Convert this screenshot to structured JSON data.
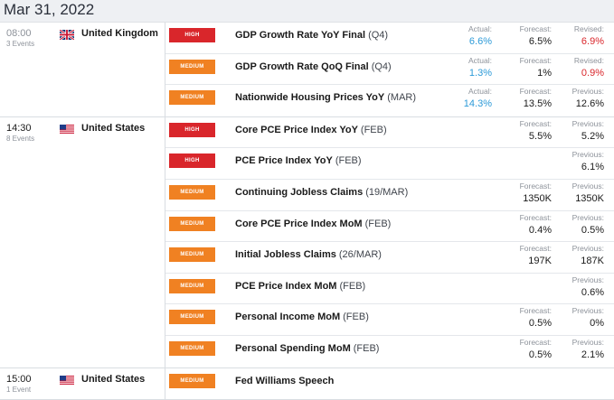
{
  "date": "Mar 31, 2022",
  "colors": {
    "high": "#d9262b",
    "medium": "#f08122",
    "actual_blue": "#2c9ad8",
    "revised_red": "#d9262b"
  },
  "groups": [
    {
      "time": "08:00",
      "events_count": "3 Events",
      "country": "United Kingdom",
      "flag_icon": "uk-flag-icon",
      "events": [
        {
          "impact": "HIGH",
          "name": "GDP Growth Rate YoY Final",
          "period": "(Q4)",
          "actual_label": "Actual:",
          "actual": "6.6%",
          "forecast_label": "Forecast:",
          "forecast": "6.5%",
          "prev_label": "Revised:",
          "prev": "6.9%"
        },
        {
          "impact": "MEDIUM",
          "name": "GDP Growth Rate QoQ Final",
          "period": "(Q4)",
          "actual_label": "Actual:",
          "actual": "1.3%",
          "forecast_label": "Forecast:",
          "forecast": "1%",
          "prev_label": "Revised:",
          "prev": "0.9%"
        },
        {
          "impact": "MEDIUM",
          "name": "Nationwide Housing Prices YoY",
          "period": "(MAR)",
          "actual_label": "Actual:",
          "actual": "14.3%",
          "forecast_label": "Forecast:",
          "forecast": "13.5%",
          "prev_label": "Previous:",
          "prev": "12.6%"
        }
      ]
    },
    {
      "time": "14:30",
      "events_count": "8 Events",
      "country": "United States",
      "flag_icon": "us-flag-icon",
      "events": [
        {
          "impact": "HIGH",
          "name": "Core PCE Price Index YoY",
          "period": "(FEB)",
          "forecast_label": "Forecast:",
          "forecast": "5.5%",
          "prev_label": "Previous:",
          "prev": "5.2%"
        },
        {
          "impact": "HIGH",
          "name": "PCE Price Index YoY",
          "period": "(FEB)",
          "prev_label": "Previous:",
          "prev": "6.1%"
        },
        {
          "impact": "MEDIUM",
          "name": "Continuing Jobless Claims",
          "period": "(19/MAR)",
          "forecast_label": "Forecast:",
          "forecast": "1350K",
          "prev_label": "Previous:",
          "prev": "1350K"
        },
        {
          "impact": "MEDIUM",
          "name": "Core PCE Price Index MoM",
          "period": "(FEB)",
          "forecast_label": "Forecast:",
          "forecast": "0.4%",
          "prev_label": "Previous:",
          "prev": "0.5%"
        },
        {
          "impact": "MEDIUM",
          "name": "Initial Jobless Claims",
          "period": "(26/MAR)",
          "forecast_label": "Forecast:",
          "forecast": "197K",
          "prev_label": "Previous:",
          "prev": "187K"
        },
        {
          "impact": "MEDIUM",
          "name": "PCE Price Index MoM",
          "period": "(FEB)",
          "prev_label": "Previous:",
          "prev": "0.6%"
        },
        {
          "impact": "MEDIUM",
          "name": "Personal Income MoM",
          "period": "(FEB)",
          "forecast_label": "Forecast:",
          "forecast": "0.5%",
          "prev_label": "Previous:",
          "prev": "0%"
        },
        {
          "impact": "MEDIUM",
          "name": "Personal Spending MoM",
          "period": "(FEB)",
          "forecast_label": "Forecast:",
          "forecast": "0.5%",
          "prev_label": "Previous:",
          "prev": "2.1%"
        }
      ]
    },
    {
      "time": "15:00",
      "events_count": "1 Event",
      "country": "United States",
      "flag_icon": "us-flag-icon",
      "events": [
        {
          "impact": "MEDIUM",
          "name": "Fed Williams Speech",
          "period": ""
        }
      ]
    }
  ]
}
